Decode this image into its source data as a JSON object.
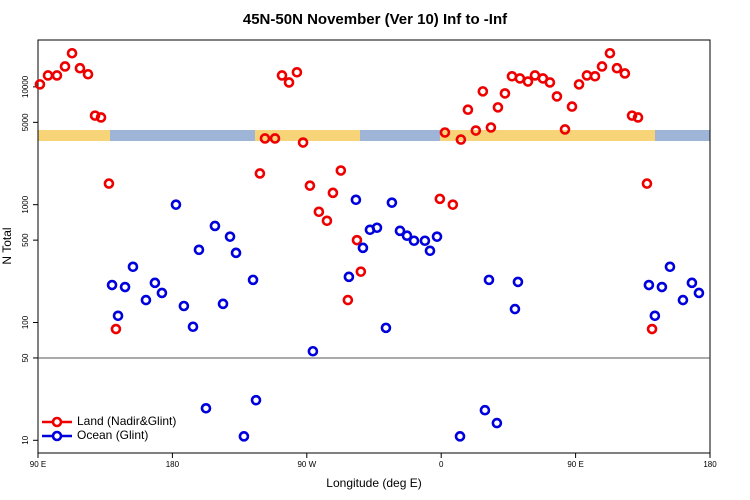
{
  "chart_data": {
    "type": "scatter",
    "title": "45N-50N November (Ver 10)   Inf to -Inf",
    "xlabel": "Longitude (deg E)",
    "ylabel": "N Total",
    "log_y": true,
    "xlim": [
      90,
      540
    ],
    "ylim": [
      7.8,
      25000
    ],
    "xticks": [
      {
        "value": 90,
        "label": "90 E"
      },
      180,
      {
        "value": 270,
        "label": "90 W"
      },
      {
        "value": 360,
        "label": "0"
      },
      {
        "value": 450,
        "label": "90 E"
      },
      {
        "value": 540,
        "label": "180"
      }
    ],
    "yticks": [
      10,
      50,
      100,
      500,
      1000,
      5000,
      10000
    ],
    "hline": 50,
    "legend": "bottom-left",
    "series": [
      {
        "name": "Land (Nadir&Glint)",
        "color": "#ee0000",
        "x": [
          91.3,
          96.7,
          102.7,
          108.1,
          112.8,
          118.1,
          123.5,
          128.2,
          132.2,
          137.5,
          142.2,
          242,
          248.7,
          253.4,
          258.1,
          263.4,
          267.5,
          238.6,
          272.1,
          278.1,
          283.5,
          287.5,
          292.8,
          297.5,
          303.6,
          306.2,
          359.1,
          362.5,
          367.8,
          373.2,
          377.9,
          383.2,
          387.9,
          393.3,
          398,
          402.7,
          407.4,
          412.7,
          418.1,
          422.8,
          428.1,
          432.8,
          437.5,
          442.9,
          447.6,
          452.3,
          457.6,
          463,
          467.7,
          473,
          477.7,
          483,
          487.8,
          491.8,
          497.8,
          501.2
        ],
        "values": [
          10500,
          12500,
          12500,
          14900,
          19300,
          14400,
          12800,
          5700,
          5500,
          1510,
          88,
          3650,
          3650,
          12500,
          10900,
          13300,
          3370,
          1840,
          1450,
          870,
          730,
          1260,
          1950,
          155,
          500,
          270,
          1120,
          4100,
          1000,
          3570,
          6400,
          4260,
          9160,
          4520,
          6700,
          8800,
          12300,
          11800,
          11100,
          12500,
          11800,
          10900,
          8300,
          4350,
          6800,
          10500,
          12500,
          12300,
          14900,
          19300,
          14400,
          13000,
          5700,
          5500,
          1510,
          88
        ]
      },
      {
        "name": "Ocean (Glint)",
        "color": "#0000dd",
        "x": [
          139.6,
          143.6,
          148.3,
          153.6,
          162.3,
          168.3,
          173,
          182.4,
          187.7,
          193.8,
          197.8,
          202.5,
          208.5,
          213.9,
          218.6,
          222.6,
          227.9,
          234,
          236,
          274.1,
          298.2,
          302.9,
          307.6,
          312.3,
          317,
          323,
          327,
          332.4,
          337.1,
          341.8,
          349.1,
          352.5,
          357.2,
          372.6,
          389.3,
          392,
          397.3,
          409.4,
          411.4,
          499.1,
          503.1,
          507.8,
          513.2,
          521.9,
          527.9,
          532.6
        ],
        "values": [
          208,
          114,
          200,
          297,
          155,
          217,
          178,
          1000,
          138,
          92,
          414,
          18.7,
          660,
          144,
          535,
          390,
          10.8,
          230,
          21.9,
          57,
          244,
          1100,
          430,
          612,
          637,
          90,
          1040,
          600,
          545,
          494,
          494,
          406,
          535,
          10.8,
          18,
          230,
          14,
          130,
          221,
          208,
          114,
          200,
          297,
          155,
          217,
          178
        ]
      }
    ]
  }
}
